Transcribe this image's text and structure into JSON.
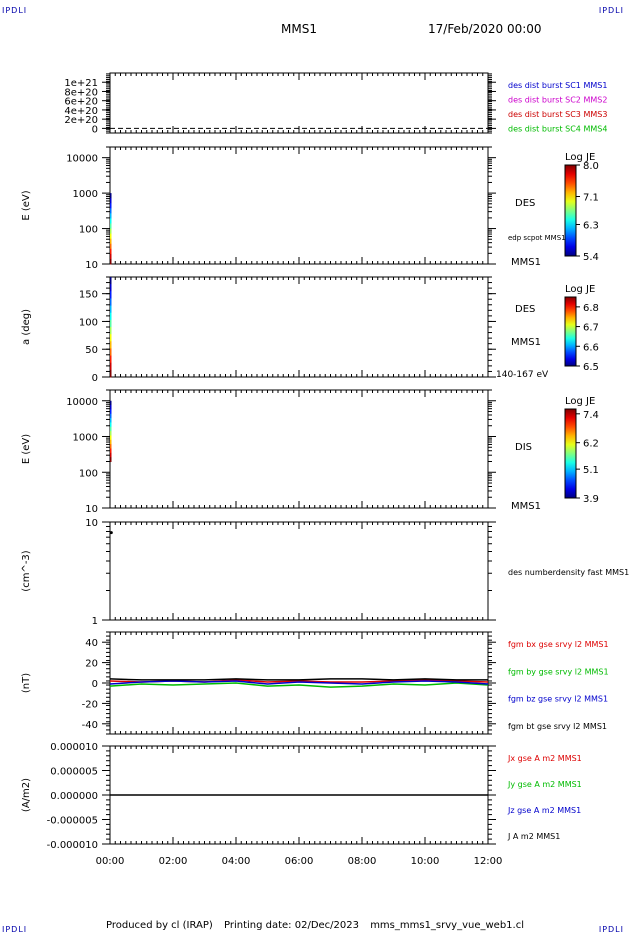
{
  "header": {
    "corner_label": "IPDLI",
    "spacecraft": "MMS1",
    "datetime": "17/Feb/2020 00:00"
  },
  "footer": {
    "produced_by": "Produced by cl (IRAP)",
    "printing_date": "Printing date: 02/Dec/2023",
    "file_name": "mms_mms1_srvy_vue_web1.cl"
  },
  "chart_data": [
    {
      "type": "line",
      "panel": "distribution-flags",
      "ylabel": "",
      "yscale": "linear",
      "ylim": [
        -1e+20,
        1.2e+21
      ],
      "yticks": [
        0,
        2e+20,
        4e+20,
        6e+20,
        8e+20,
        1e+21
      ],
      "ytick_labels": [
        "0",
        "2e+20",
        "4e+20",
        "6e+20",
        "8e+20",
        "1e+21"
      ],
      "legend": [
        {
          "label": "des dist burst SC1 MMS1",
          "color": "#0000cc"
        },
        {
          "label": "des dist burst SC2 MMS2",
          "color": "#cc00cc"
        },
        {
          "label": "des dist burst SC3 MMS3",
          "color": "#cc0000"
        },
        {
          "label": "des dist burst SC4 MMS4",
          "color": "#00bb00"
        }
      ],
      "series": [
        {
          "style": "dashed",
          "color": "#000000",
          "x": [
            0,
            12
          ],
          "y": [
            0,
            0
          ]
        }
      ]
    },
    {
      "type": "heatmap",
      "panel": "des-energy-spectrogram",
      "ylabel": "E (eV)",
      "yscale": "log",
      "ylim": [
        10,
        20000
      ],
      "yticks": [
        10,
        100,
        1000,
        10000
      ],
      "ytick_labels": [
        "10",
        "100",
        "1000",
        "10000"
      ],
      "instrument": "DES",
      "overlay_label": "edp scpot MMS1",
      "spacecraft": "MMS1",
      "colorbar": {
        "title": "Log JE",
        "range": [
          5.4,
          8.0
        ],
        "ticks": [
          "8.0",
          "7.1",
          "6.3",
          "5.4"
        ]
      },
      "data_coverage": {
        "x_start": 0,
        "x_end": 0.03,
        "y_low": 10,
        "y_high": 1000
      }
    },
    {
      "type": "heatmap",
      "panel": "des-pitch-angle",
      "ylabel": "a (deg)",
      "yscale": "linear",
      "ylim": [
        0,
        180
      ],
      "yticks": [
        0,
        50,
        100,
        150
      ],
      "ytick_labels": [
        "0",
        "50",
        "100",
        "150"
      ],
      "instrument": "DES",
      "spacecraft": "MMS1",
      "energy_range": "140-167 eV",
      "colorbar": {
        "title": "Log JE",
        "range": [
          6.5,
          6.85
        ],
        "ticks": [
          "6.8",
          "6.7",
          "6.6",
          "6.5"
        ]
      },
      "data_coverage": {
        "x_start": 0,
        "x_end": 0.03,
        "y_low": 0,
        "y_high": 180
      }
    },
    {
      "type": "heatmap",
      "panel": "dis-energy-spectrogram",
      "ylabel": "E (eV)",
      "yscale": "log",
      "ylim": [
        10,
        20000
      ],
      "yticks": [
        10,
        100,
        1000,
        10000
      ],
      "ytick_labels": [
        "10",
        "100",
        "1000",
        "10000"
      ],
      "instrument": "DIS",
      "spacecraft": "MMS1",
      "colorbar": {
        "title": "Log JE",
        "range": [
          3.9,
          7.6
        ],
        "ticks": [
          "7.4",
          "6.2",
          "5.1",
          "3.9"
        ]
      },
      "data_coverage": {
        "x_start": 0,
        "x_end": 0.03,
        "y_low": 200,
        "y_high": 10000
      }
    },
    {
      "type": "scatter",
      "panel": "density",
      "ylabel": "(cm^-3)",
      "yscale": "log",
      "ylim": [
        1,
        10
      ],
      "yticks": [
        1,
        10
      ],
      "ytick_labels": [
        "1",
        "10"
      ],
      "legend": [
        {
          "label": "des numberdensity fast MMS1",
          "color": "#000000"
        }
      ],
      "series": [
        {
          "color": "#000000",
          "x": [
            0.01
          ],
          "y": [
            7.8
          ]
        }
      ]
    },
    {
      "type": "line",
      "panel": "magnetic-field",
      "ylabel": "(nT)",
      "yscale": "linear",
      "ylim": [
        -50,
        50
      ],
      "yticks": [
        -40,
        -20,
        0,
        20,
        40
      ],
      "ytick_labels": [
        "-40",
        "-20",
        "0",
        "20",
        "40"
      ],
      "legend": [
        {
          "label": "fgm bx gse srvy l2 MMS1",
          "color": "#dd0000"
        },
        {
          "label": "fgm by gse srvy l2 MMS1",
          "color": "#00bb00"
        },
        {
          "label": "fgm bz gse srvy l2 MMS1",
          "color": "#0000cc"
        },
        {
          "label": "fgm bt gse srvy l2 MMS1",
          "color": "#000000"
        }
      ],
      "series": [
        {
          "color": "#dd0000",
          "x": [
            0,
            1,
            2,
            3,
            4,
            5,
            6,
            7,
            8,
            9,
            10,
            11,
            12
          ],
          "y": [
            2,
            1,
            2,
            1,
            3,
            1,
            2,
            1,
            1,
            2,
            3,
            2,
            1
          ]
        },
        {
          "color": "#00bb00",
          "x": [
            0,
            1,
            2,
            3,
            4,
            5,
            6,
            7,
            8,
            9,
            10,
            11,
            12
          ],
          "y": [
            -3,
            -1,
            -2,
            -1,
            0,
            -3,
            -2,
            -4,
            -3,
            -1,
            -2,
            0,
            -2
          ]
        },
        {
          "color": "#0000cc",
          "x": [
            0,
            1,
            2,
            3,
            4,
            5,
            6,
            7,
            8,
            9,
            10,
            11,
            12
          ],
          "y": [
            -1,
            1,
            2,
            1,
            2,
            -1,
            1,
            0,
            -1,
            1,
            2,
            1,
            -1
          ]
        },
        {
          "color": "#000000",
          "x": [
            0,
            1,
            2,
            3,
            4,
            5,
            6,
            7,
            8,
            9,
            10,
            11,
            12
          ],
          "y": [
            4,
            3,
            3,
            3,
            4,
            3,
            3,
            4,
            4,
            3,
            4,
            3,
            3
          ]
        }
      ]
    },
    {
      "type": "line",
      "panel": "current-density",
      "ylabel": "(A/m2)",
      "yscale": "linear",
      "ylim": [
        -1e-05,
        1e-05
      ],
      "yticks": [
        -1e-05,
        -5e-06,
        0,
        5e-06,
        1e-05
      ],
      "ytick_labels": [
        "-0.000010",
        "-0.000005",
        "0.000000",
        "0.000005",
        "0.000010"
      ],
      "legend": [
        {
          "label": "Jx gse A m2 MMS1",
          "color": "#dd0000"
        },
        {
          "label": "Jy gse A m2 MMS1",
          "color": "#00bb00"
        },
        {
          "label": "Jz gse A m2 MMS1",
          "color": "#0000cc"
        },
        {
          "label": "J A m2 MMS1",
          "color": "#000000"
        }
      ],
      "series": [
        {
          "color": "#000000",
          "x": [
            0,
            12
          ],
          "y": [
            0,
            0
          ]
        }
      ]
    }
  ],
  "x_axis": {
    "range_hours": [
      0,
      12
    ],
    "ticks": [
      0,
      2,
      4,
      6,
      8,
      10,
      12
    ],
    "tick_labels": [
      "00:00",
      "02:00",
      "04:00",
      "06:00",
      "08:00",
      "10:00",
      "12:00"
    ]
  }
}
